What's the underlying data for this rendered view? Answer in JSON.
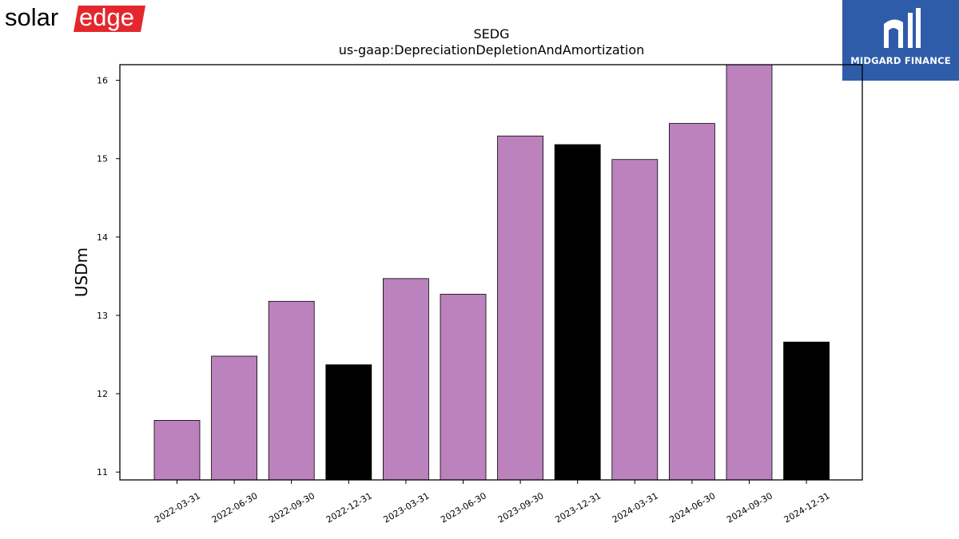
{
  "header": {
    "left_logo_text": "solaredge",
    "right_logo_text": "MIDGARD FINANCE"
  },
  "colors": {
    "bar_default": "#bc82bd",
    "bar_highlight": "#000000",
    "logo_red": "#e3272d",
    "logo_blue": "#2f5ca9"
  },
  "chart_data": {
    "type": "bar",
    "title": "SEDG",
    "subtitle": "us-gaap:DepreciationDepletionAndAmortization",
    "xlabel": "",
    "ylabel": "USDm",
    "ylim": [
      10.9,
      16.2
    ],
    "yticks": [
      11,
      12,
      13,
      14,
      15,
      16
    ],
    "grid": false,
    "categories": [
      "2022-03-31",
      "2022-06-30",
      "2022-09-30",
      "2022-12-31",
      "2023-03-31",
      "2023-06-30",
      "2023-09-30",
      "2023-12-31",
      "2024-03-31",
      "2024-06-30",
      "2024-09-30",
      "2024-12-31"
    ],
    "values": [
      11.66,
      12.48,
      13.18,
      12.37,
      13.47,
      13.27,
      15.29,
      15.18,
      14.99,
      15.45,
      16.2,
      12.66
    ],
    "highlight": [
      false,
      false,
      false,
      true,
      false,
      false,
      false,
      true,
      false,
      false,
      false,
      true
    ]
  }
}
